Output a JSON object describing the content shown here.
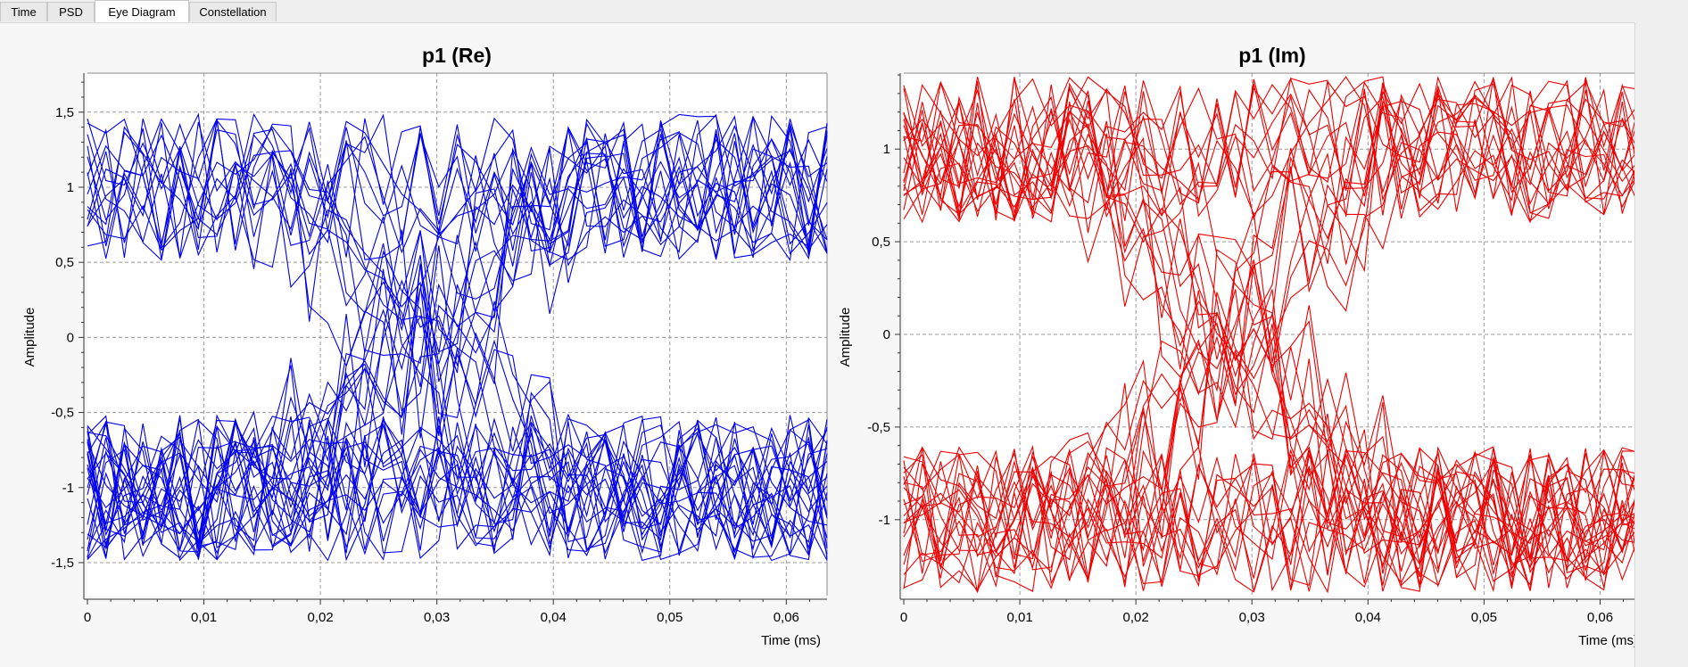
{
  "tabs": [
    {
      "label": "Time",
      "active": false
    },
    {
      "label": "PSD",
      "active": false
    },
    {
      "label": "Eye Diagram",
      "active": true
    },
    {
      "label": "Constellation",
      "active": false
    }
  ],
  "chart_data": [
    {
      "type": "line",
      "title": "p1 (Re)",
      "xlabel": "Time (ms)",
      "ylabel": "Amplitude",
      "color": "#0000ee",
      "xlim": [
        0,
        0.0635
      ],
      "ylim": [
        -1.72,
        1.76
      ],
      "xticks": [
        0,
        0.01,
        0.02,
        0.03,
        0.04,
        0.05,
        0.06
      ],
      "xtick_labels": [
        "0",
        "0,01",
        "0,02",
        "0,03",
        "0,04",
        "0,05",
        "0,06"
      ],
      "yticks": [
        -1.5,
        -1,
        -0.5,
        0,
        0.5,
        1,
        1.5
      ],
      "ytick_labels": [
        "-1,5",
        "-1",
        "-0,5",
        "0",
        "0,5",
        "1",
        "1,5"
      ],
      "grid": true,
      "traces": 40,
      "samples": 40,
      "levels": [
        -1,
        1
      ]
    },
    {
      "type": "line",
      "title": "p1 (Im)",
      "xlabel": "Time (ms)",
      "ylabel": "Amplitude",
      "color": "#ee0000",
      "xlim": [
        0,
        0.0635
      ],
      "ylim": [
        -1.41,
        1.41
      ],
      "xticks": [
        0,
        0.01,
        0.02,
        0.03,
        0.04,
        0.05,
        0.06
      ],
      "xtick_labels": [
        "0",
        "0,01",
        "0,02",
        "0,03",
        "0,04",
        "0,05",
        "0,06"
      ],
      "yticks": [
        -1,
        -0.5,
        0,
        0.5,
        1
      ],
      "ytick_labels": [
        "-1",
        "-0,5",
        "0",
        "0,5",
        "1"
      ],
      "grid": true,
      "traces": 40,
      "samples": 40,
      "levels": [
        -1,
        1
      ]
    }
  ]
}
